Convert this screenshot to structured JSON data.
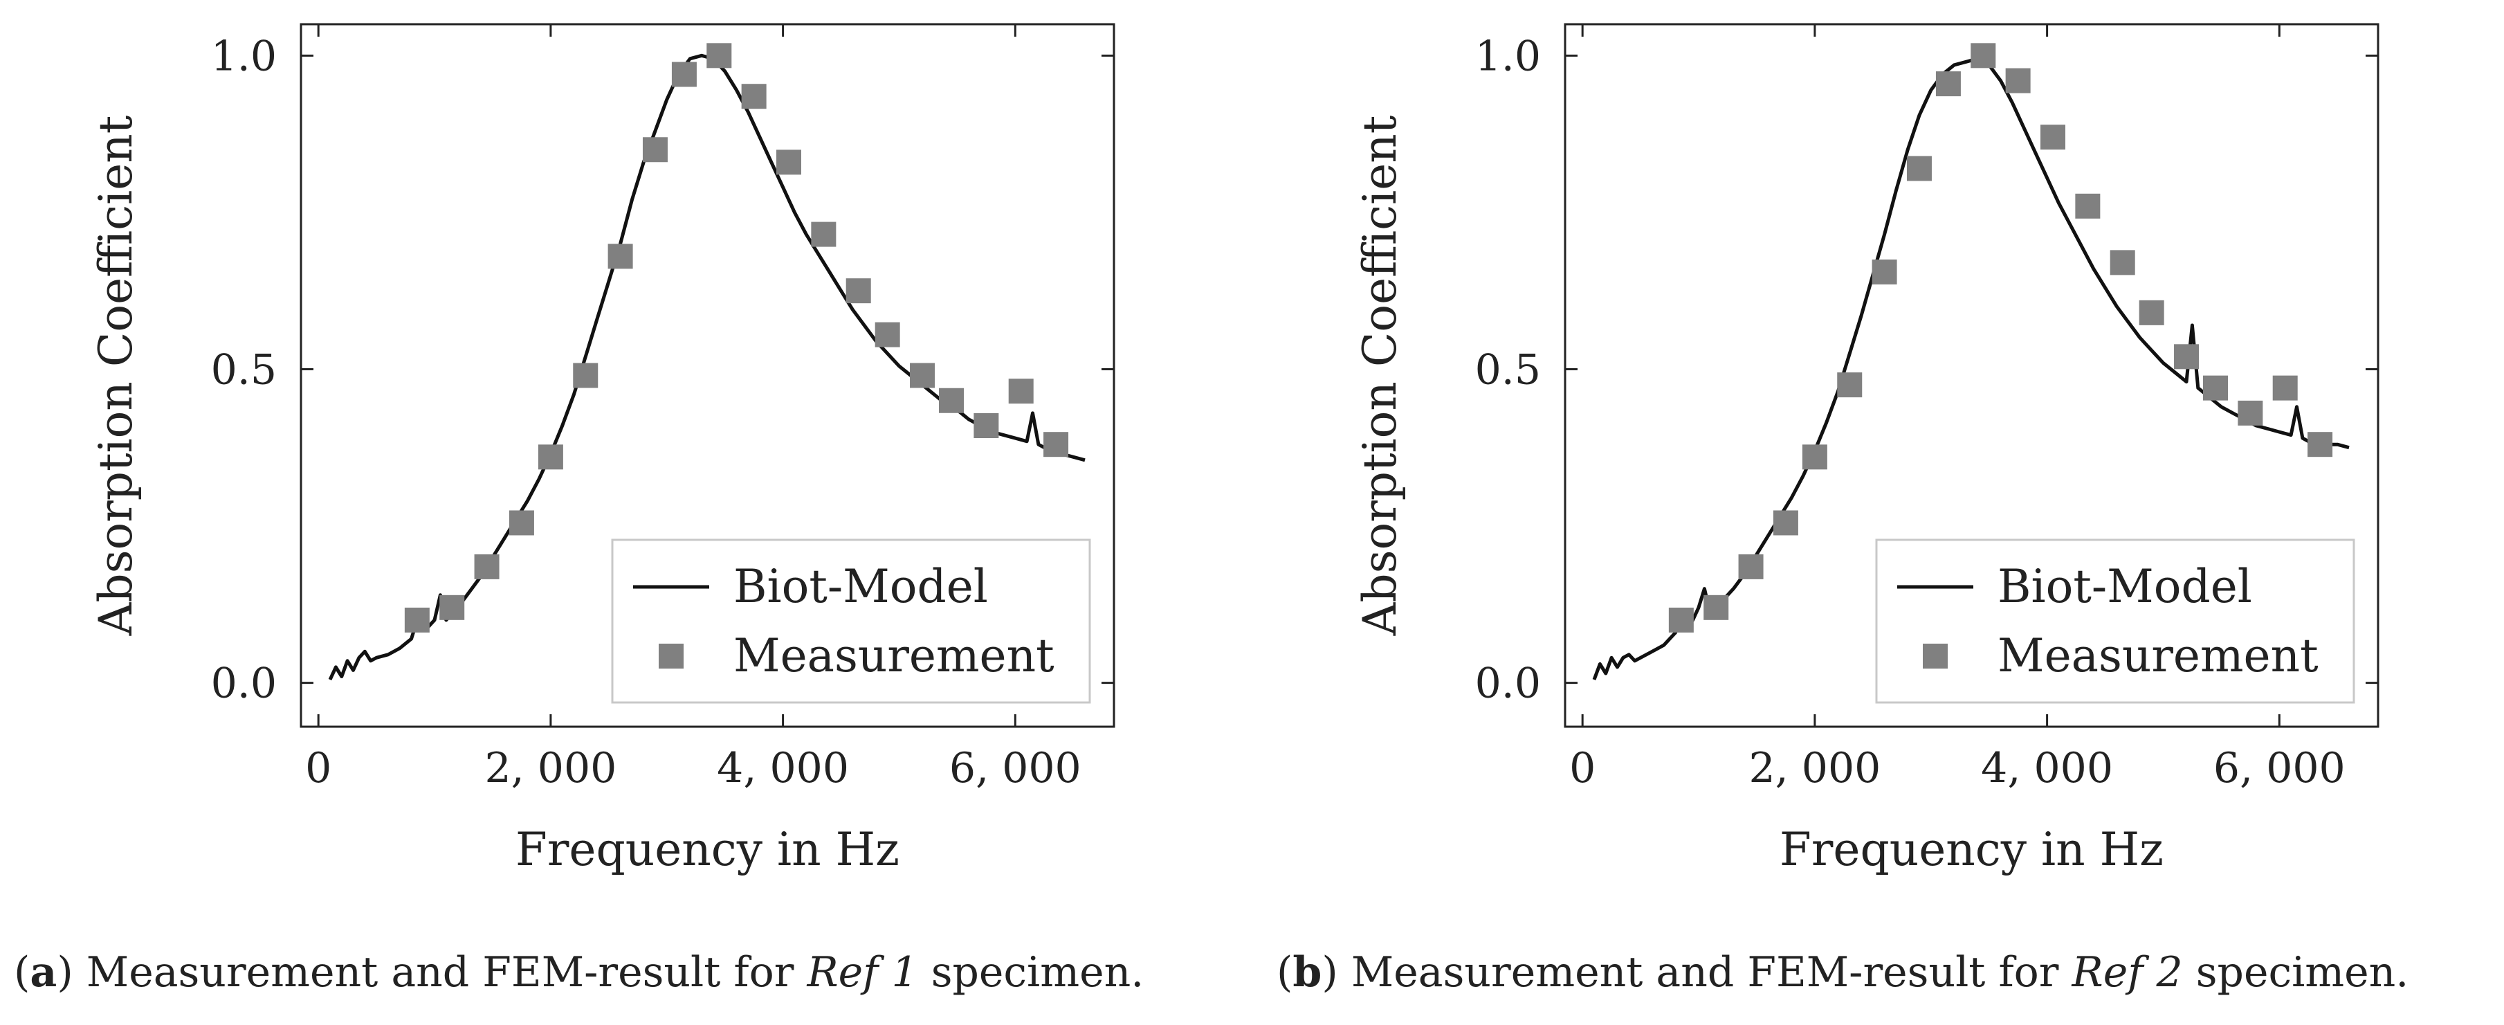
{
  "chart_data": [
    {
      "type": "line+scatter",
      "panel": "a",
      "xlabel": "Frequency in Hz",
      "ylabel": "Absorption Coefficient",
      "xlim": [
        -150,
        6850
      ],
      "ylim": [
        -0.07,
        1.05
      ],
      "xticks": [
        0,
        2000,
        4000,
        6000
      ],
      "xtick_labels": [
        "0",
        "2, 000",
        "4, 000",
        "6, 000"
      ],
      "yticks": [
        0,
        0.5,
        1
      ],
      "ytick_labels": [
        "0.0",
        "0.5",
        "1.0"
      ],
      "legend": {
        "position": "bottom-right",
        "entries": [
          "Biot-Model",
          "Measurement"
        ]
      },
      "series": [
        {
          "name": "Biot-Model",
          "kind": "line",
          "x": [
            100,
            150,
            200,
            250,
            300,
            350,
            400,
            450,
            500,
            600,
            700,
            800,
            850,
            900,
            950,
            1000,
            1050,
            1100,
            1200,
            1300,
            1400,
            1500,
            1600,
            1700,
            1800,
            1900,
            2000,
            2100,
            2200,
            2300,
            2400,
            2500,
            2600,
            2700,
            2800,
            2900,
            3000,
            3100,
            3200,
            3300,
            3400,
            3500,
            3600,
            3700,
            3800,
            3900,
            4000,
            4100,
            4200,
            4300,
            4400,
            4500,
            4600,
            4700,
            4800,
            4900,
            5000,
            5100,
            5200,
            5300,
            5400,
            5500,
            5600,
            5700,
            5800,
            5900,
            6000,
            6100,
            6150,
            6200,
            6250,
            6300,
            6400,
            6500,
            6600
          ],
          "y": [
            0.005,
            0.025,
            0.01,
            0.035,
            0.02,
            0.04,
            0.05,
            0.035,
            0.04,
            0.045,
            0.055,
            0.07,
            0.1,
            0.085,
            0.09,
            0.1,
            0.14,
            0.1,
            0.12,
            0.145,
            0.17,
            0.2,
            0.23,
            0.26,
            0.29,
            0.325,
            0.365,
            0.41,
            0.46,
            0.52,
            0.58,
            0.64,
            0.7,
            0.77,
            0.83,
            0.88,
            0.93,
            0.97,
            0.995,
            1.0,
            0.995,
            0.975,
            0.945,
            0.91,
            0.87,
            0.83,
            0.79,
            0.75,
            0.715,
            0.685,
            0.655,
            0.625,
            0.595,
            0.57,
            0.545,
            0.525,
            0.505,
            0.49,
            0.475,
            0.46,
            0.445,
            0.435,
            0.42,
            0.41,
            0.4,
            0.395,
            0.39,
            0.385,
            0.43,
            0.38,
            0.375,
            0.37,
            0.365,
            0.36,
            0.355
          ]
        },
        {
          "name": "Measurement",
          "kind": "scatter",
          "x": [
            850,
            1150,
            1450,
            1750,
            2000,
            2300,
            2600,
            2900,
            3150,
            3450,
            3750,
            4050,
            4350,
            4650,
            4900,
            5200,
            5450,
            5750,
            6050,
            6350
          ],
          "y": [
            0.1,
            0.12,
            0.185,
            0.255,
            0.36,
            0.49,
            0.68,
            0.85,
            0.97,
            1.0,
            0.935,
            0.83,
            0.715,
            0.625,
            0.555,
            0.49,
            0.45,
            0.41,
            0.465,
            0.38
          ]
        }
      ]
    },
    {
      "type": "line+scatter",
      "panel": "b",
      "xlabel": "Frequency in Hz",
      "ylabel": "Absorption Coefficient",
      "xlim": [
        -150,
        6850
      ],
      "ylim": [
        -0.07,
        1.05
      ],
      "xticks": [
        0,
        2000,
        4000,
        6000
      ],
      "xtick_labels": [
        "0",
        "2, 000",
        "4, 000",
        "6, 000"
      ],
      "yticks": [
        0,
        0.5,
        1
      ],
      "ytick_labels": [
        "0.0",
        "0.5",
        "1.0"
      ],
      "legend": {
        "position": "bottom-right",
        "entries": [
          "Biot-Model",
          "Measurement"
        ]
      },
      "series": [
        {
          "name": "Biot-Model",
          "kind": "line",
          "x": [
            100,
            150,
            200,
            250,
            300,
            350,
            400,
            450,
            500,
            600,
            700,
            800,
            850,
            900,
            950,
            1000,
            1050,
            1100,
            1200,
            1300,
            1400,
            1500,
            1600,
            1700,
            1800,
            1900,
            2000,
            2100,
            2200,
            2300,
            2400,
            2500,
            2600,
            2700,
            2800,
            2900,
            3000,
            3100,
            3200,
            3300,
            3400,
            3500,
            3600,
            3700,
            3800,
            3900,
            4000,
            4100,
            4200,
            4300,
            4400,
            4500,
            4600,
            4700,
            4800,
            4900,
            5000,
            5100,
            5200,
            5250,
            5300,
            5400,
            5500,
            5600,
            5700,
            5800,
            5900,
            6000,
            6100,
            6150,
            6200,
            6250,
            6300,
            6400,
            6500,
            6600
          ],
          "y": [
            0.005,
            0.03,
            0.015,
            0.04,
            0.025,
            0.04,
            0.045,
            0.035,
            0.04,
            0.05,
            0.06,
            0.08,
            0.11,
            0.09,
            0.1,
            0.12,
            0.15,
            0.11,
            0.13,
            0.15,
            0.175,
            0.205,
            0.235,
            0.265,
            0.295,
            0.33,
            0.37,
            0.415,
            0.465,
            0.525,
            0.585,
            0.65,
            0.715,
            0.785,
            0.85,
            0.905,
            0.945,
            0.97,
            0.985,
            0.99,
            0.995,
            0.985,
            0.96,
            0.925,
            0.885,
            0.845,
            0.805,
            0.765,
            0.73,
            0.695,
            0.66,
            0.63,
            0.6,
            0.575,
            0.55,
            0.53,
            0.51,
            0.495,
            0.48,
            0.57,
            0.47,
            0.455,
            0.44,
            0.43,
            0.42,
            0.41,
            0.405,
            0.4,
            0.395,
            0.44,
            0.39,
            0.385,
            0.385,
            0.38,
            0.38,
            0.375
          ]
        },
        {
          "name": "Measurement",
          "kind": "scatter",
          "x": [
            850,
            1150,
            1450,
            1750,
            2000,
            2300,
            2600,
            2900,
            3150,
            3450,
            3750,
            4050,
            4350,
            4650,
            4900,
            5200,
            5450,
            5750,
            6050,
            6350
          ],
          "y": [
            0.1,
            0.12,
            0.185,
            0.255,
            0.36,
            0.475,
            0.655,
            0.82,
            0.955,
            1.0,
            0.96,
            0.87,
            0.76,
            0.67,
            0.59,
            0.52,
            0.47,
            0.43,
            0.47,
            0.38
          ]
        }
      ]
    }
  ],
  "captions": [
    {
      "label": "a",
      "text_before": "Measurement and FEM-result for ",
      "specimen": "Ref 1",
      "text_after": " specimen."
    },
    {
      "label": "b",
      "text_before": "Measurement and FEM-result for ",
      "specimen": "Ref 2",
      "text_after": " specimen."
    }
  ],
  "colors": {
    "line": "#111111",
    "marker": "#808080",
    "axis": "#222222",
    "legend_border": "#c8c8c8"
  }
}
